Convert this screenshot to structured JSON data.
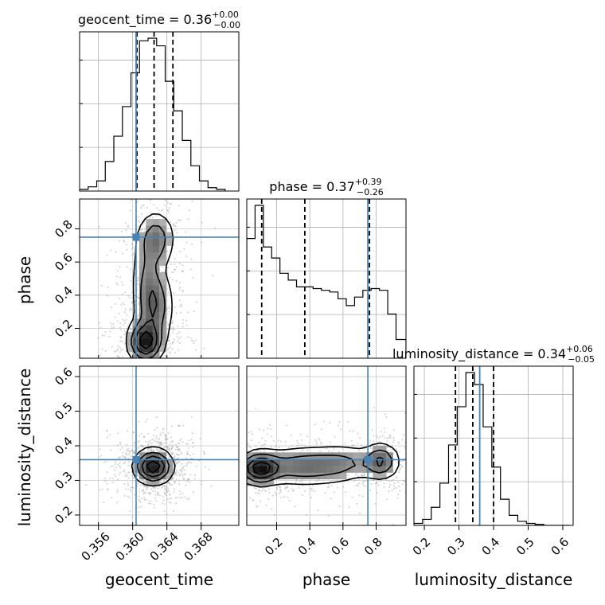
{
  "chart_data": {
    "type": "corner",
    "parameters": [
      "geocent_time",
      "phase",
      "luminosity_distance"
    ],
    "truths": [
      0.3604,
      0.75,
      0.36
    ],
    "truth_color": "#4682b4",
    "ranges": [
      [
        0.3538,
        0.3724
      ],
      [
        0.02,
        0.98
      ],
      [
        0.17,
        0.63
      ]
    ],
    "ticks": [
      {
        "values": [
          0.356,
          0.36,
          0.364,
          0.368
        ],
        "labels": [
          "0.356",
          "0.360",
          "0.364",
          "0.368"
        ]
      },
      {
        "values": [
          0.2,
          0.4,
          0.6,
          0.8
        ],
        "labels": [
          "0.2",
          "0.4",
          "0.6",
          "0.8"
        ]
      },
      {
        "values": [
          0.2,
          0.3,
          0.4,
          0.5,
          0.6
        ],
        "labels": [
          "0.2",
          "0.3",
          "0.4",
          "0.5",
          "0.6"
        ]
      }
    ],
    "titles": [
      {
        "name": "geocent_time",
        "median": "0.36",
        "plus": "+0.00",
        "minus": "−0.00"
      },
      {
        "name": "phase",
        "median": "0.37",
        "plus": "+0.39",
        "minus": "−0.26"
      },
      {
        "name": "luminosity_distance",
        "median": "0.34",
        "plus": "+0.06",
        "minus": "−0.05"
      }
    ],
    "histograms": [
      {
        "quantiles": [
          0.3605,
          0.3625,
          0.3647
        ],
        "bin_edges": [
          0.3538,
          0.3548,
          0.3558,
          0.3568,
          0.3578,
          0.3588,
          0.3598,
          0.3608,
          0.3618,
          0.3628,
          0.3638,
          0.3648,
          0.3658,
          0.3668,
          0.3678,
          0.3688,
          0.3698,
          0.3708
        ],
        "counts": [
          2,
          5,
          12,
          35,
          65,
          100,
          140,
          178,
          181,
          172,
          130,
          95,
          60,
          30,
          12,
          4,
          2
        ]
      },
      {
        "quantiles": [
          0.11,
          0.37,
          0.76
        ],
        "bin_edges": [
          0.02,
          0.07,
          0.12,
          0.17,
          0.22,
          0.27,
          0.32,
          0.37,
          0.42,
          0.47,
          0.52,
          0.57,
          0.62,
          0.67,
          0.72,
          0.77,
          0.82,
          0.87,
          0.92,
          0.98
        ],
        "counts": [
          141,
          180,
          131,
          118,
          100,
          92,
          84,
          84,
          82,
          80,
          78,
          70,
          62,
          72,
          80,
          82,
          80,
          52,
          22
        ]
      },
      {
        "quantiles": [
          0.29,
          0.34,
          0.4
        ],
        "bin_edges": [
          0.17,
          0.195,
          0.22,
          0.245,
          0.27,
          0.295,
          0.32,
          0.345,
          0.37,
          0.395,
          0.42,
          0.445,
          0.47,
          0.495,
          0.52,
          0.545,
          0.57,
          0.595,
          0.62
        ],
        "counts": [
          2,
          6,
          18,
          42,
          80,
          118,
          152,
          140,
          98,
          58,
          26,
          10,
          4,
          2,
          1,
          0,
          0,
          0
        ]
      }
    ],
    "density_2d": [
      {
        "x": "geocent_time",
        "y": "phase",
        "peaks": [
          {
            "x": 0.3615,
            "y": 0.12,
            "sx": 0.0011,
            "sy": 0.07,
            "w": 1.0
          },
          {
            "x": 0.3625,
            "y": 0.33,
            "sx": 0.0012,
            "sy": 0.11,
            "w": 0.55
          },
          {
            "x": 0.3627,
            "y": 0.74,
            "sx": 0.0012,
            "sy": 0.09,
            "w": 0.5
          },
          {
            "x": 0.3618,
            "y": 0.52,
            "sx": 0.0011,
            "sy": 0.12,
            "w": 0.32
          }
        ]
      },
      {
        "x": "geocent_time",
        "y": "luminosity_distance",
        "peaks": [
          {
            "x": 0.3624,
            "y": 0.34,
            "sx": 0.0012,
            "sy": 0.027,
            "w": 1.0
          }
        ]
      },
      {
        "x": "phase",
        "y": "luminosity_distance",
        "peaks": [
          {
            "x": 0.1,
            "y": 0.335,
            "sx": 0.07,
            "sy": 0.025,
            "w": 1.0
          },
          {
            "x": 0.35,
            "y": 0.34,
            "sx": 0.14,
            "sy": 0.03,
            "w": 0.5
          },
          {
            "x": 0.83,
            "y": 0.355,
            "sx": 0.06,
            "sy": 0.028,
            "w": 0.6
          },
          {
            "x": 0.6,
            "y": 0.35,
            "sx": 0.12,
            "sy": 0.03,
            "w": 0.35
          }
        ]
      }
    ],
    "grid": true
  }
}
